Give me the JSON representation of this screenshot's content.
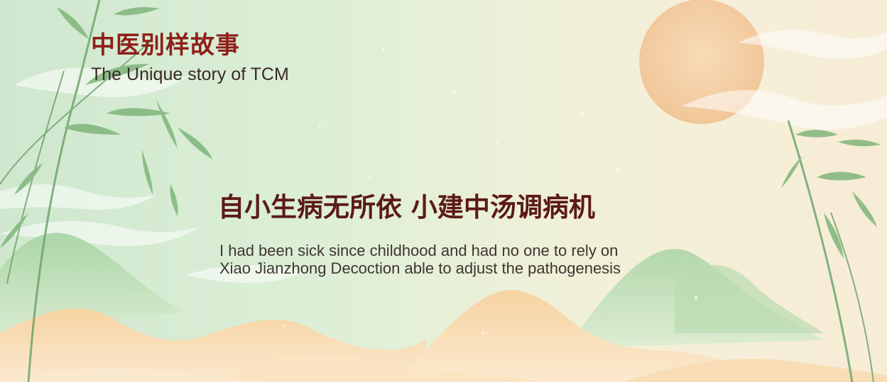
{
  "brand": {
    "title_zh": "中医别样故事",
    "title_en": "The Unique story of TCM"
  },
  "headline": {
    "zh": "自小生病无所依 小建中汤调病机",
    "en_line1": "I had been sick since childhood and had no one to rely on",
    "en_line2": "Xiao Jianzhong Decoction able to adjust the pathogenesis"
  },
  "colors": {
    "brand_red": "#8e1f1a",
    "headline_red": "#5b1a16",
    "sun": "#f2c79a",
    "mountain_green": "#9fcf9e",
    "sand_orange": "#f5d4a6"
  },
  "icons": [
    "sun-illustration",
    "bamboo-left-illustration",
    "bamboo-right-illustration",
    "mountains-illustration",
    "clouds-illustration"
  ]
}
